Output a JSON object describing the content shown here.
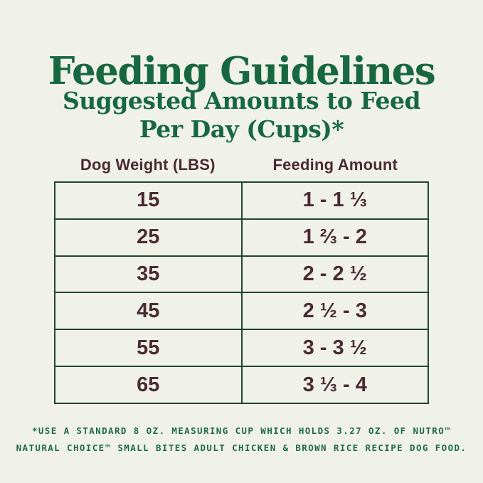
{
  "page": {
    "title": "Feeding Guidelines",
    "subtitle_line1": "Suggested Amounts to Feed",
    "subtitle_line2": "Per Day (Cups)*"
  },
  "table": {
    "col1_header": "Dog Weight (LBS)",
    "col2_header": "Feeding Amount",
    "rows": [
      {
        "weight": "15",
        "amount": "1 - 1 ⅓"
      },
      {
        "weight": "25",
        "amount": "1 ⅔ - 2"
      },
      {
        "weight": "35",
        "amount": "2 - 2 ½"
      },
      {
        "weight": "45",
        "amount": "2 ½ - 3"
      },
      {
        "weight": "55",
        "amount": "3 - 3 ½"
      },
      {
        "weight": "65",
        "amount": "3 ⅓ - 4"
      }
    ]
  },
  "footnote": {
    "line1": "*USE A STANDARD 8 OZ. MEASURING CUP WHICH HOLDS 3.27 OZ. OF NUTRO™",
    "line2": "NATURAL CHOICE™ SMALL BITES ADULT CHICKEN & BROWN RICE RECIPE DOG FOOD."
  },
  "colors": {
    "background": "#f0f2ea",
    "heading_green": "#176742",
    "table_text_brown": "#4b2a34",
    "table_border_green": "#20452f",
    "footnote_green": "#1e6a47"
  },
  "chart_data": {
    "type": "table",
    "title": "Feeding Guidelines",
    "subtitle": "Suggested Amounts to Feed Per Day (Cups)*",
    "columns": [
      "Dog Weight (LBS)",
      "Feeding Amount"
    ],
    "rows": [
      [
        "15",
        "1 - 1 ⅓"
      ],
      [
        "25",
        "1 ⅔ - 2"
      ],
      [
        "35",
        "2 - 2 ½"
      ],
      [
        "45",
        "2 ½ - 3"
      ],
      [
        "55",
        "3 - 3 ½"
      ],
      [
        "65",
        "3 ⅓ - 4"
      ]
    ],
    "footnote": "*USE A STANDARD 8 OZ. MEASURING CUP WHICH HOLDS 3.27 OZ. OF NUTRO™ NATURAL CHOICE™ SMALL BITES ADULT CHICKEN & BROWN RICE RECIPE DOG FOOD.",
    "notes": "Feeding amount ranges are in cups per day; weights in pounds"
  }
}
